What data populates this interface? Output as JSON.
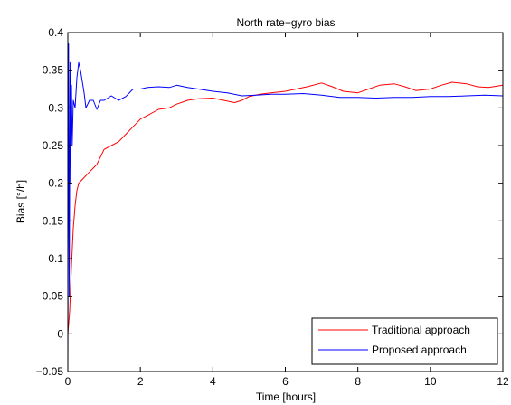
{
  "chart_data": {
    "type": "line",
    "title": "North rate−gyro bias",
    "xlabel": "Time [hours]",
    "ylabel": "Bias [°/h]",
    "xlim": [
      0,
      12
    ],
    "ylim": [
      -0.05,
      0.4
    ],
    "xticks": [
      0,
      2,
      4,
      6,
      8,
      10,
      12
    ],
    "yticks": [
      -0.05,
      0,
      0.05,
      0.1,
      0.15,
      0.2,
      0.25,
      0.3,
      0.35,
      0.4
    ],
    "xtick_labels": [
      "0",
      "2",
      "4",
      "6",
      "8",
      "10",
      "12"
    ],
    "ytick_labels": [
      "−0.05",
      "0",
      "0.05",
      "0.1",
      "0.15",
      "0.2",
      "0.25",
      "0.3",
      "0.35",
      "0.4"
    ],
    "grid": false,
    "legend_position": "bottom-right",
    "series": [
      {
        "name": "Traditional approach",
        "color": "#ff0000",
        "x": [
          0,
          0.05,
          0.1,
          0.15,
          0.2,
          0.25,
          0.3,
          0.4,
          0.5,
          0.6,
          0.7,
          0.8,
          0.9,
          1.0,
          1.2,
          1.4,
          1.6,
          1.8,
          2.0,
          2.2,
          2.5,
          2.8,
          3.0,
          3.3,
          3.6,
          4.0,
          4.3,
          4.6,
          4.8,
          5.0,
          5.3,
          5.6,
          6.0,
          6.3,
          6.6,
          7.0,
          7.3,
          7.6,
          8.0,
          8.3,
          8.6,
          9.0,
          9.3,
          9.6,
          10.0,
          10.3,
          10.6,
          11.0,
          11.3,
          11.6,
          12.0
        ],
        "y": [
          0.0,
          0.03,
          0.09,
          0.14,
          0.17,
          0.19,
          0.2,
          0.205,
          0.21,
          0.215,
          0.22,
          0.225,
          0.235,
          0.245,
          0.25,
          0.255,
          0.265,
          0.275,
          0.285,
          0.29,
          0.298,
          0.3,
          0.305,
          0.31,
          0.312,
          0.313,
          0.31,
          0.307,
          0.31,
          0.315,
          0.318,
          0.32,
          0.322,
          0.325,
          0.328,
          0.333,
          0.328,
          0.322,
          0.32,
          0.325,
          0.33,
          0.332,
          0.328,
          0.323,
          0.325,
          0.33,
          0.334,
          0.332,
          0.328,
          0.327,
          0.33
        ]
      },
      {
        "name": "Proposed approach",
        "color": "#0000ff",
        "x": [
          0,
          0.02,
          0.04,
          0.06,
          0.08,
          0.1,
          0.12,
          0.15,
          0.2,
          0.25,
          0.3,
          0.35,
          0.4,
          0.45,
          0.5,
          0.6,
          0.7,
          0.8,
          0.9,
          1.0,
          1.2,
          1.4,
          1.6,
          1.8,
          2.0,
          2.2,
          2.5,
          2.8,
          3.0,
          3.3,
          3.6,
          4.0,
          4.4,
          4.8,
          5.2,
          5.6,
          6.0,
          6.5,
          7.0,
          7.5,
          8.0,
          8.5,
          9.0,
          9.5,
          10.0,
          10.5,
          11.0,
          11.5,
          12.0
        ],
        "y": [
          -0.05,
          0.385,
          0.05,
          0.36,
          0.2,
          0.33,
          0.25,
          0.31,
          0.3,
          0.34,
          0.36,
          0.35,
          0.335,
          0.32,
          0.3,
          0.31,
          0.31,
          0.298,
          0.31,
          0.31,
          0.316,
          0.31,
          0.315,
          0.325,
          0.325,
          0.327,
          0.328,
          0.327,
          0.33,
          0.327,
          0.325,
          0.322,
          0.32,
          0.316,
          0.317,
          0.318,
          0.318,
          0.319,
          0.317,
          0.314,
          0.314,
          0.313,
          0.314,
          0.314,
          0.315,
          0.315,
          0.316,
          0.317,
          0.316
        ]
      }
    ]
  }
}
